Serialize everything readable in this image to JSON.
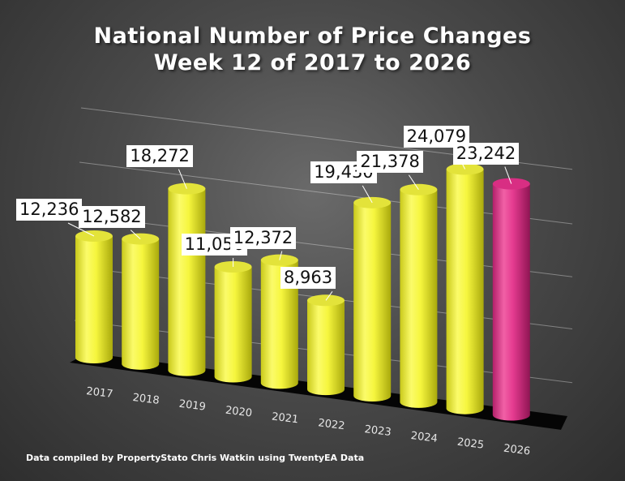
{
  "chart_data": {
    "type": "bar",
    "title_line1": "National Number of Price Changes",
    "title_line2": "Week 12 of 2017 to 2026",
    "title": "National Number of Price Changes Week 12 of 2017 to 2026",
    "categories": [
      "2017",
      "2018",
      "2019",
      "2020",
      "2021",
      "2022",
      "2023",
      "2024",
      "2025",
      "2026"
    ],
    "values": [
      12236,
      12582,
      18272,
      11056,
      12372,
      8963,
      19430,
      21378,
      24079,
      23242
    ],
    "value_labels": [
      "12,236",
      "12,582",
      "18,272",
      "11,056",
      "12,372",
      "8,963",
      "19,430",
      "21,378",
      "24,079",
      "23,242"
    ],
    "ylim": [
      0,
      30000
    ],
    "grid": true,
    "colors": {
      "default": "#f4f43a",
      "highlight": "#e0358c"
    },
    "highlight_category": "2026",
    "footnote": "Data compiled by PropertyStato Chris Watkin using TwentyEA Data"
  }
}
